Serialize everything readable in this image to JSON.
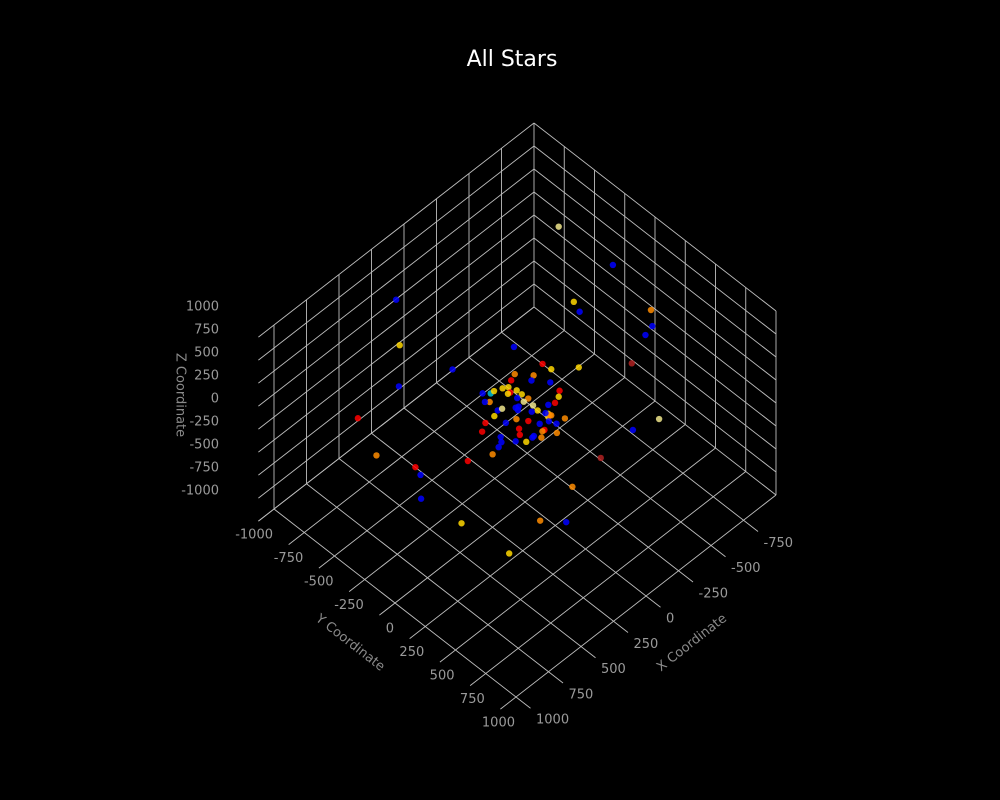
{
  "chart_data": {
    "type": "scatter3d",
    "title": "All Stars",
    "x_label": "X Coordinate",
    "y_label": "Y Coordinate",
    "z_label": "Z Coordinate",
    "xlim": [
      -1000,
      1000
    ],
    "ylim": [
      -1000,
      1000
    ],
    "zlim": [
      -1000,
      1000
    ],
    "xticks": [
      -750,
      -500,
      -250,
      0,
      250,
      500,
      750,
      1000
    ],
    "yticks": [
      -1000,
      -750,
      -500,
      -250,
      0,
      250,
      500,
      750,
      1000
    ],
    "zticks": [
      -1000,
      -750,
      -500,
      -250,
      0,
      250,
      500,
      750,
      1000
    ],
    "grid": true,
    "x": [
      30,
      -60,
      120,
      -150,
      80,
      -30,
      200,
      -210,
      10,
      140,
      -90,
      60,
      -130,
      170,
      -40,
      100,
      -180,
      40,
      -250,
      230,
      -20,
      70,
      -110,
      150,
      -70,
      90,
      -160,
      20,
      110,
      -50,
      180,
      -100,
      50,
      -200,
      130,
      -10,
      160,
      -140,
      0,
      -80,
      240,
      -230,
      60,
      -120,
      190,
      -20,
      110,
      -60,
      80,
      -170,
      35,
      -45,
      95,
      -95,
      125,
      -125,
      15,
      -15,
      55,
      -55,
      -700,
      820,
      -520,
      640,
      -380,
      450,
      -600,
      700,
      300,
      -820,
      -300,
      520,
      -450,
      260,
      750,
      -250,
      380,
      -650,
      600,
      -430,
      910,
      -880,
      200,
      -350,
      480,
      -560,
      330,
      -150,
      680,
      -760
    ],
    "y": [
      -20,
      40,
      80,
      -90,
      -140,
      160,
      20,
      60,
      -60,
      -200,
      -30,
      120,
      190,
      140,
      -180,
      30,
      -140,
      70,
      10,
      -80,
      100,
      -110,
      130,
      -40,
      -160,
      170,
      20,
      -100,
      60,
      210,
      -60,
      90,
      -230,
      -70,
      150,
      50,
      -120,
      110,
      -10,
      -200,
      40,
      -30,
      200,
      80,
      -150,
      -90,
      -40,
      140,
      -170,
      10,
      65,
      -75,
      25,
      115,
      -55,
      35,
      -125,
      145,
      -5,
      85,
      300,
      -500,
      -650,
      420,
      700,
      -380,
      -200,
      280,
      -720,
      160,
      560,
      -300,
      -80,
      620,
      -100,
      -600,
      800,
      -420,
      120,
      430,
      -250,
      50,
      -850,
      250,
      -520,
      -150,
      480,
      -760,
      600,
      -90
    ],
    "z": [
      50,
      -30,
      10,
      120,
      -60,
      90,
      -110,
      40,
      -150,
      130,
      -80,
      170,
      -40,
      60,
      20,
      -200,
      -20,
      240,
      -120,
      30,
      -70,
      200,
      90,
      -170,
      150,
      -10,
      -230,
      110,
      180,
      -90,
      70,
      -140,
      0,
      210,
      -50,
      -260,
      140,
      -190,
      80,
      30,
      -100,
      160,
      -30,
      250,
      -180,
      100,
      -60,
      20,
      120,
      -120,
      -15,
      45,
      155,
      -45,
      95,
      -135,
      65,
      -85,
      185,
      -205,
      450,
      300,
      -550,
      650,
      200,
      -600,
      -400,
      500,
      -150,
      350,
      750,
      -700,
      600,
      -300,
      100,
      -800,
      400,
      850,
      -450,
      -250,
      250,
      -100,
      550,
      -650,
      700,
      300,
      -350,
      -500,
      -200,
      650
    ],
    "colors": [
      "#0000ff",
      "#ffd700",
      "#ff0000",
      "#ff8c00",
      "#0000ff",
      "#ffd700",
      "#0000ff",
      "#ff0000",
      "#ff8c00",
      "#0000ff",
      "#f0e68c",
      "#0000ff",
      "#ff8c00",
      "#ff0000",
      "#ffd700",
      "#0000ff",
      "#0000ff",
      "#ff8c00",
      "#ffd700",
      "#ff0000",
      "#0000ff",
      "#ffd700",
      "#ff0000",
      "#0000ff",
      "#ff8c00",
      "#0000ff",
      "#ffd700",
      "#ff0000",
      "#0000ff",
      "#ff8c00",
      "#ffd700",
      "#0000ff",
      "#00bcd4",
      "#ff0000",
      "#ffd700",
      "#0000ff",
      "#ff8c00",
      "#0000ff",
      "#f0e68c",
      "#ff0000",
      "#0000ff",
      "#ffd700",
      "#ff8c00",
      "#0000ff",
      "#ff0000",
      "#ffd700",
      "#0000ff",
      "#ff8c00",
      "#ffd700",
      "#0000ff",
      "#ff0000",
      "#ffd700",
      "#0000ff",
      "#ff8c00",
      "#f0e68c",
      "#0000ff",
      "#ffd700",
      "#ff0000",
      "#0000ff",
      "#ff8c00",
      "#0000ff",
      "#ff0000",
      "#0000ff",
      "#ff8c00",
      "#f0e68c",
      "#0000ff",
      "#ffd700",
      "#ff0000",
      "#0000ff",
      "#ff8c00",
      "#b22222",
      "#0000ff",
      "#ffd700",
      "#0000ff",
      "#ff0000",
      "#0000ff",
      "#ff8c00",
      "#f0e68c",
      "#ffd700",
      "#0000ff",
      "#ff8c00",
      "#0000ff",
      "#0000ff",
      "#b22222",
      "#ffd700",
      "#0000ff",
      "#ff8c00",
      "#0000ff",
      "#ffd700",
      "#0000ff"
    ]
  }
}
